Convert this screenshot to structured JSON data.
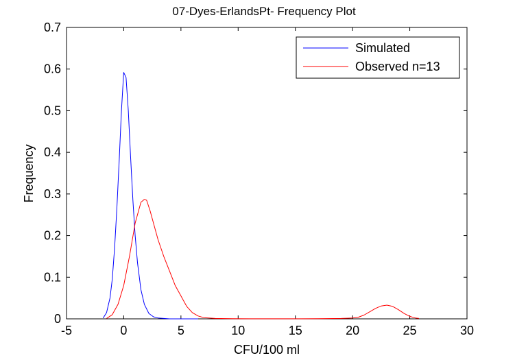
{
  "chart_data": {
    "type": "line",
    "title": "07-Dyes-ErlandsPt- Frequency Plot",
    "xlabel": "CFU/100 ml",
    "ylabel": "Frequency",
    "xlim": [
      -5,
      30
    ],
    "ylim": [
      0,
      0.7
    ],
    "xticks": [
      -5,
      0,
      5,
      10,
      15,
      20,
      25,
      30
    ],
    "yticks": [
      0,
      0.1,
      0.2,
      0.3,
      0.4,
      0.5,
      0.6,
      0.7
    ],
    "xtick_labels": [
      "-5",
      "0",
      "5",
      "10",
      "15",
      "20",
      "25",
      "30"
    ],
    "ytick_labels": [
      "0",
      "0.1",
      "0.2",
      "0.3",
      "0.4",
      "0.5",
      "0.6",
      "0.7"
    ],
    "grid": false,
    "legend_position": "top-right",
    "series": [
      {
        "name": "Simulated",
        "color": "#0000ff",
        "x": [
          -1.8,
          -1.5,
          -1.2,
          -1.0,
          -0.8,
          -0.6,
          -0.4,
          -0.2,
          0.0,
          0.2,
          0.4,
          0.6,
          0.8,
          1.0,
          1.2,
          1.5,
          1.8,
          2.2,
          2.6,
          3.0,
          3.5,
          4.0,
          5.0,
          6.5
        ],
        "y": [
          0.002,
          0.015,
          0.05,
          0.095,
          0.17,
          0.265,
          0.38,
          0.5,
          0.592,
          0.58,
          0.5,
          0.39,
          0.285,
          0.2,
          0.135,
          0.07,
          0.035,
          0.013,
          0.005,
          0.002,
          0.001,
          0.0,
          0.0,
          0.0
        ]
      },
      {
        "name": "Observed n=13",
        "color": "#ff0000",
        "x": [
          -1.5,
          -1.0,
          -0.5,
          0.0,
          0.5,
          1.0,
          1.5,
          1.8,
          2.0,
          2.3,
          2.6,
          3.0,
          3.5,
          4.0,
          4.5,
          5.0,
          5.5,
          6.0,
          6.5,
          7.0,
          8.0,
          9.5,
          11.0,
          11.6,
          15.5,
          17.0,
          19.0,
          20.0,
          20.5,
          21.0,
          21.5,
          22.0,
          22.5,
          23.0,
          23.5,
          24.0,
          24.5,
          25.0,
          25.5,
          25.8
        ],
        "y": [
          0.001,
          0.01,
          0.035,
          0.08,
          0.15,
          0.23,
          0.28,
          0.287,
          0.285,
          0.26,
          0.23,
          0.19,
          0.15,
          0.115,
          0.08,
          0.055,
          0.03,
          0.015,
          0.007,
          0.003,
          0.001,
          0.0005,
          0.0002,
          0.0001,
          0.0002,
          0.0004,
          0.001,
          0.002,
          0.004,
          0.009,
          0.017,
          0.025,
          0.031,
          0.033,
          0.03,
          0.022,
          0.013,
          0.006,
          0.002,
          0.001
        ]
      }
    ]
  }
}
